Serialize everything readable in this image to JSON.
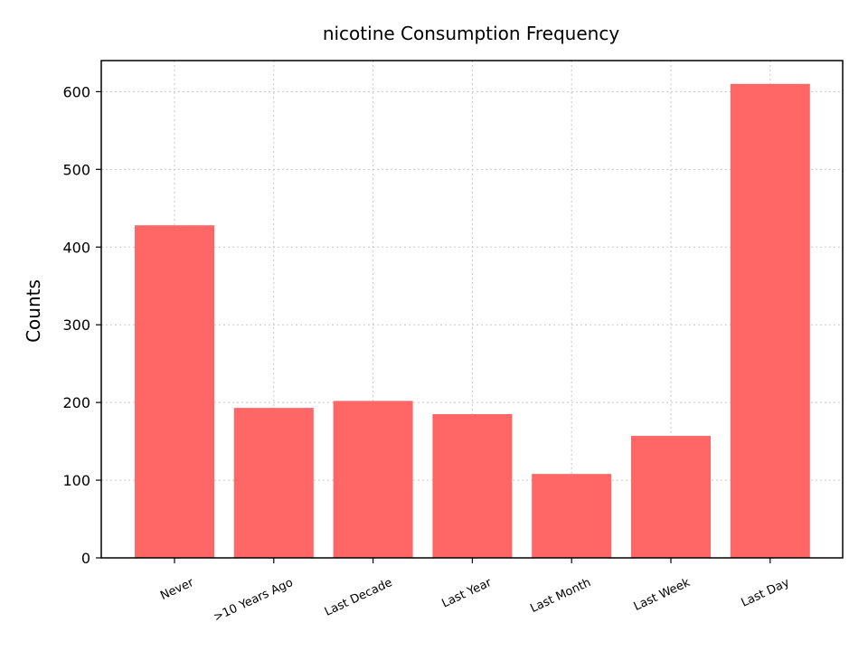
{
  "chart_data": {
    "type": "bar",
    "title": "nicotine Consumption Frequency",
    "xlabel": "",
    "ylabel": "Counts",
    "categories": [
      "Never",
      ">10 Years Ago",
      "Last Decade",
      "Last Year",
      "Last Month",
      "Last Week",
      "Last Day"
    ],
    "values": [
      428,
      193,
      202,
      185,
      108,
      157,
      610
    ],
    "ylim": [
      0,
      640
    ],
    "yticks": [
      0,
      100,
      200,
      300,
      400,
      500,
      600
    ],
    "grid": true,
    "bar_color": "#ff6666"
  }
}
